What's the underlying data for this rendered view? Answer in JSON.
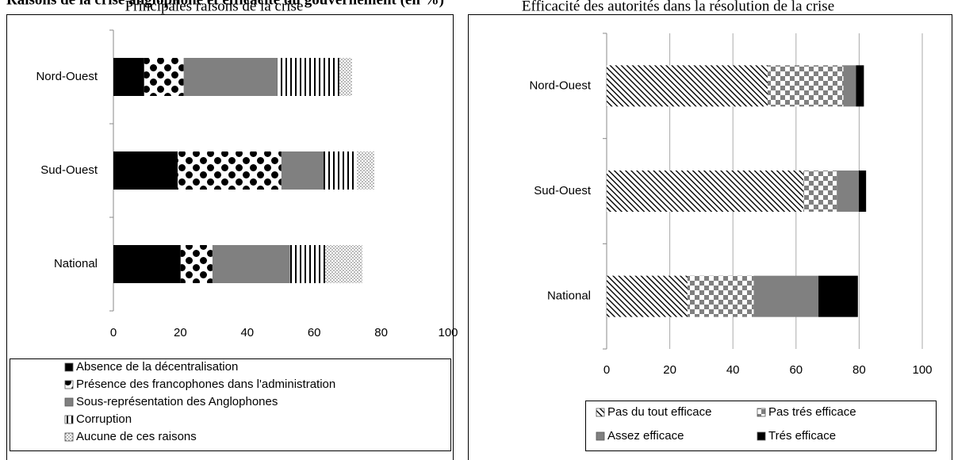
{
  "title": "Raisons de la crise anglophone et efficacité du gouvernement (en %)",
  "chart_data": [
    {
      "type": "bar",
      "orientation": "horizontal",
      "stacked": true,
      "title": "Principales raisons de la crise",
      "categories": [
        "Nord-Ouest",
        "Sud-Ouest",
        "National"
      ],
      "series": [
        {
          "name": "Absence de la décentralisation",
          "color": "#000000",
          "pattern": "solid",
          "values": [
            9.2,
            19.2,
            20.1
          ]
        },
        {
          "name": "Présence des francophones dans l'administration",
          "color": "#000000",
          "pattern": "dot-checker",
          "values": [
            11.8,
            31,
            9.5
          ]
        },
        {
          "name": "Sous-représentation des Anglophones",
          "color": "#808080",
          "pattern": "solid",
          "values": [
            28,
            12.6,
            23.2
          ]
        },
        {
          "name": "Corruption",
          "color": "#000000",
          "pattern": "vertical",
          "values": [
            18.5,
            9.9,
            10.5
          ]
        },
        {
          "name": "Aucune de ces raisons",
          "color": "#808080",
          "pattern": "dots",
          "values": [
            3.8,
            5.3,
            11.1
          ]
        }
      ],
      "xlim": [
        0,
        100
      ],
      "xticks": [
        0,
        20,
        40,
        60,
        80,
        100
      ],
      "grid": false,
      "legend": "bottom",
      "legend_columns": 1
    },
    {
      "type": "bar",
      "orientation": "horizontal",
      "stacked": true,
      "title": "Efficacité des autorités dans la résolution de la crise",
      "categories": [
        "Nord-Ouest",
        "Sud-Ouest",
        "National"
      ],
      "series": [
        {
          "name": "Pas du tout efficace",
          "color": "#000000",
          "pattern": "diagonal",
          "values": [
            51,
            62.3,
            25.6
          ]
        },
        {
          "name": "Pas trés efficace",
          "color": "#808080",
          "pattern": "checker",
          "values": [
            24,
            10.6,
            21
          ]
        },
        {
          "name": "Assez efficace",
          "color": "#808080",
          "pattern": "solid",
          "values": [
            4,
            7,
            20.5
          ]
        },
        {
          "name": "Trés efficace",
          "color": "#000000",
          "pattern": "solid",
          "values": [
            2.5,
            2.3,
            12.5
          ]
        }
      ],
      "xlim": [
        0,
        100
      ],
      "xticks": [
        0,
        20,
        40,
        60,
        80,
        100
      ],
      "grid": true,
      "legend": "bottom",
      "legend_columns": 2
    }
  ]
}
